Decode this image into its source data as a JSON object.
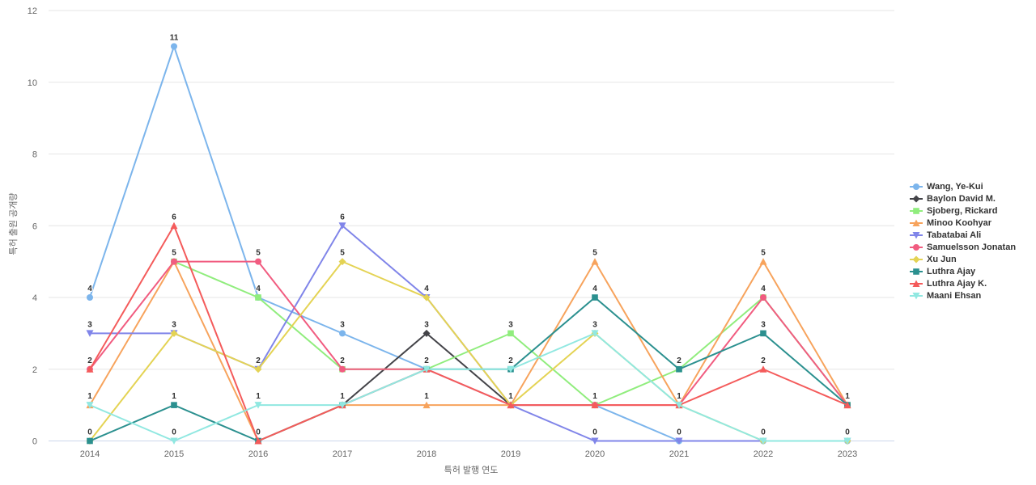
{
  "chart_data": {
    "type": "line",
    "title": "",
    "xlabel": "특허 발행 연도",
    "ylabel": "특허 출원 공개량",
    "categories": [
      "2014",
      "2015",
      "2016",
      "2017",
      "2018",
      "2019",
      "2020",
      "2021",
      "2022",
      "2023"
    ],
    "ylim": [
      0,
      12
    ],
    "yticks": [
      0,
      2,
      4,
      6,
      8,
      10,
      12
    ],
    "grid": true,
    "legend_position": "right",
    "axis_colors": {
      "gridline": "#e6e6e6",
      "axis_line": "#ccd6eb",
      "tick_text": "#666666",
      "title_text": "#666666"
    },
    "series": [
      {
        "name": "Wang, Ye-Kui",
        "color": "#7cb5ec",
        "marker": "circle",
        "values": [
          4,
          11,
          4,
          3,
          2,
          1,
          1,
          0,
          0,
          0
        ]
      },
      {
        "name": "Baylon David M.",
        "color": "#434348",
        "marker": "diamond",
        "values": [
          null,
          null,
          null,
          1,
          3,
          1,
          null,
          null,
          null,
          null
        ]
      },
      {
        "name": "Sjoberg, Rickard",
        "color": "#90ed7d",
        "marker": "square",
        "values": [
          null,
          5,
          4,
          2,
          2,
          3,
          1,
          2,
          4,
          1
        ]
      },
      {
        "name": "Minoo Koohyar",
        "color": "#f7a35c",
        "marker": "triangle",
        "values": [
          1,
          5,
          0,
          1,
          1,
          1,
          5,
          1,
          5,
          1
        ]
      },
      {
        "name": "Tabatabai Ali",
        "color": "#8085e9",
        "marker": "triangle-down",
        "values": [
          3,
          3,
          2,
          6,
          4,
          1,
          0,
          0,
          0,
          0
        ]
      },
      {
        "name": "Samuelsson Jonatan",
        "color": "#f15c80",
        "marker": "circle",
        "values": [
          2,
          5,
          5,
          2,
          2,
          1,
          1,
          1,
          4,
          1
        ]
      },
      {
        "name": "Xu Jun",
        "color": "#e4d354",
        "marker": "diamond",
        "values": [
          0,
          3,
          2,
          5,
          4,
          1,
          3,
          1,
          0,
          0
        ]
      },
      {
        "name": "Luthra Ajay",
        "color": "#2b908f",
        "marker": "square",
        "values": [
          0,
          1,
          0,
          1,
          2,
          2,
          4,
          2,
          3,
          1
        ]
      },
      {
        "name": "Luthra Ajay K.",
        "color": "#f45b5b",
        "marker": "triangle",
        "values": [
          2,
          6,
          0,
          1,
          2,
          1,
          1,
          1,
          2,
          1
        ]
      },
      {
        "name": "Maani Ehsan",
        "color": "#91e8e1",
        "marker": "triangle-down",
        "values": [
          1,
          0,
          1,
          1,
          2,
          2,
          3,
          1,
          0,
          0
        ]
      }
    ]
  }
}
